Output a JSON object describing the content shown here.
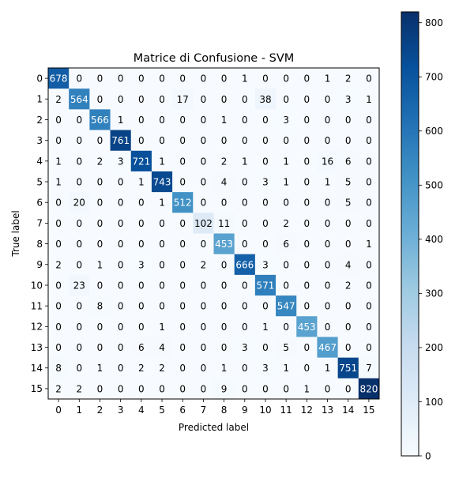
{
  "chart_data": {
    "type": "heatmap",
    "title": "Matrice di Confusione - SVM",
    "xlabel": "Predicted label",
    "ylabel": "True label",
    "x_ticks": [
      "0",
      "1",
      "2",
      "3",
      "4",
      "5",
      "6",
      "7",
      "8",
      "9",
      "10",
      "11",
      "12",
      "13",
      "14",
      "15"
    ],
    "y_ticks": [
      "0",
      "1",
      "2",
      "3",
      "4",
      "5",
      "6",
      "7",
      "8",
      "9",
      "10",
      "11",
      "12",
      "13",
      "14",
      "15"
    ],
    "matrix": [
      [
        678,
        0,
        0,
        0,
        0,
        0,
        0,
        0,
        0,
        1,
        0,
        0,
        0,
        1,
        2,
        0
      ],
      [
        2,
        564,
        0,
        0,
        0,
        0,
        17,
        0,
        0,
        0,
        38,
        0,
        0,
        0,
        3,
        1
      ],
      [
        0,
        0,
        566,
        1,
        0,
        0,
        0,
        0,
        1,
        0,
        0,
        3,
        0,
        0,
        0,
        0
      ],
      [
        0,
        0,
        0,
        761,
        0,
        0,
        0,
        0,
        0,
        0,
        0,
        0,
        0,
        0,
        0,
        0
      ],
      [
        1,
        0,
        2,
        3,
        721,
        1,
        0,
        0,
        2,
        1,
        0,
        1,
        0,
        16,
        6,
        0
      ],
      [
        1,
        0,
        0,
        0,
        1,
        743,
        0,
        0,
        4,
        0,
        3,
        1,
        0,
        1,
        5,
        0
      ],
      [
        0,
        20,
        0,
        0,
        0,
        1,
        512,
        0,
        0,
        0,
        0,
        0,
        0,
        0,
        5,
        0
      ],
      [
        0,
        0,
        0,
        0,
        0,
        0,
        0,
        102,
        11,
        0,
        0,
        2,
        0,
        0,
        0,
        0
      ],
      [
        0,
        0,
        0,
        0,
        0,
        0,
        0,
        0,
        453,
        0,
        0,
        6,
        0,
        0,
        0,
        1
      ],
      [
        2,
        0,
        1,
        0,
        3,
        0,
        0,
        2,
        0,
        666,
        3,
        0,
        0,
        0,
        4,
        0
      ],
      [
        0,
        23,
        0,
        0,
        0,
        0,
        0,
        0,
        0,
        0,
        571,
        0,
        0,
        0,
        2,
        0
      ],
      [
        0,
        0,
        8,
        0,
        0,
        0,
        0,
        0,
        0,
        0,
        0,
        547,
        0,
        0,
        0,
        0
      ],
      [
        0,
        0,
        0,
        0,
        0,
        1,
        0,
        0,
        0,
        0,
        1,
        0,
        453,
        0,
        0,
        0
      ],
      [
        0,
        0,
        0,
        0,
        6,
        4,
        0,
        0,
        0,
        3,
        0,
        5,
        0,
        467,
        0,
        0
      ],
      [
        8,
        0,
        1,
        0,
        2,
        2,
        0,
        0,
        1,
        0,
        3,
        1,
        0,
        1,
        751,
        7
      ],
      [
        2,
        2,
        0,
        0,
        0,
        0,
        0,
        0,
        9,
        0,
        0,
        0,
        1,
        0,
        0,
        820
      ]
    ],
    "colorbar": {
      "colormap": "Blues",
      "min": 0,
      "max": 820,
      "ticks": [
        "0",
        "100",
        "200",
        "300",
        "400",
        "500",
        "600",
        "700",
        "800"
      ]
    },
    "grid": false
  }
}
